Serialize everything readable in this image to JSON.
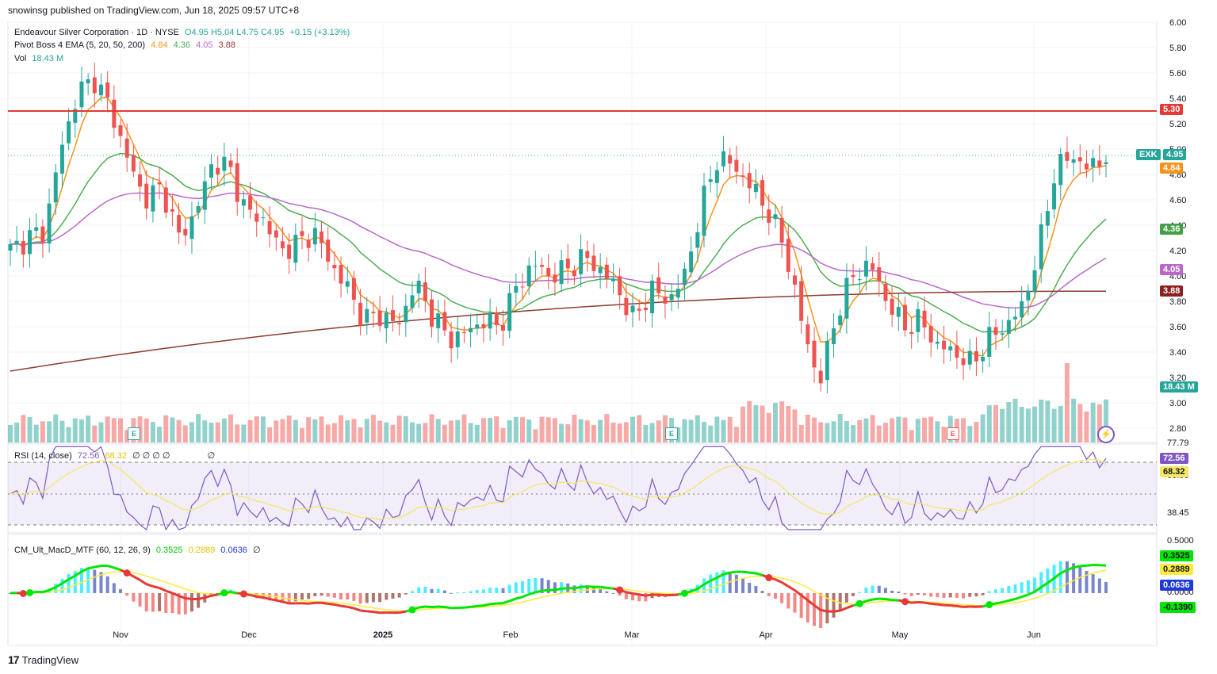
{
  "header": {
    "publisher_line": "snowinsg published on TradingView.com, Jun 18, 2025 09:57 UTC+8"
  },
  "legend": {
    "symbol_line": {
      "name": "Endeavour Silver Corporation · 1D · NYSE",
      "o": "O4.95",
      "h": "H5.04",
      "l": "L4.75",
      "c": "C4.95",
      "chg": "+0.15 (+3.13%)"
    },
    "ema_line": {
      "name": "Pivot Boss 4 EMA (5, 20, 50, 200)",
      "v1": "4.84",
      "v2": "4.36",
      "v3": "4.05",
      "v4": "3.88"
    },
    "vol_line": {
      "name": "Vol",
      "value": "18.43 M"
    },
    "rsi_line": {
      "name": "RSI (14, close)",
      "v1": "72.56",
      "v2": "68.32",
      "rest": "∅ ∅ ∅ ∅",
      "last": "∅"
    },
    "macd_line": {
      "name": "CM_Ult_MacD_MTF (60, 12, 26, 9)",
      "v1": "0.3525",
      "v2": "0.2889",
      "v3": "0.0636",
      "v4": "∅"
    }
  },
  "price_axis": {
    "ticks": [
      "6.00",
      "5.80",
      "5.60",
      "5.40",
      "5.20",
      "5.00",
      "4.80",
      "4.60",
      "4.40",
      "4.20",
      "4.00",
      "3.80",
      "3.60",
      "3.40",
      "3.20",
      "3.00",
      "2.80"
    ]
  },
  "rsi_axis": {
    "ticks": [
      "77.79",
      "60.00",
      "38.45"
    ]
  },
  "macd_axis": {
    "ticks": [
      "0.5000",
      "0.0000"
    ]
  },
  "price_tags": {
    "resistance": "5.30",
    "symbol": "EXK",
    "last": "4.95",
    "ema5": "4.84",
    "ema20": "4.36",
    "ema50": "4.05",
    "ema200": "3.88",
    "vol": "18.43 M",
    "rsi": "72.56",
    "rsi_ma": "68.32",
    "macd1": "0.3525",
    "macd2": "0.2889",
    "macd3": "0.0636",
    "macd4": "-0.1390"
  },
  "date_axis": {
    "labels": [
      "Nov",
      "Dec",
      "2025",
      "Feb",
      "Mar",
      "Apr",
      "May",
      "Jun"
    ]
  },
  "events": [
    "E",
    "E",
    "E"
  ],
  "footer": {
    "brand": "TradingView"
  },
  "colors": {
    "up": "#26a69a",
    "down": "#ef5350",
    "ema5": "#f7931a",
    "ema20": "#4caf50",
    "ema50": "#ba68c8",
    "ema200": "#8d3b2f",
    "resistance": "#e53935",
    "rsi": "#7e57c2",
    "rsi_ma": "#f5e663",
    "macd": "#00e600",
    "signal": "#ffeb3b"
  },
  "chart_data": {
    "type": "candlestick",
    "symbol": "EXK",
    "timeframe": "1D",
    "x_labels": [
      "Nov",
      "Dec",
      "2025",
      "Feb",
      "Mar",
      "Apr",
      "May",
      "Jun"
    ],
    "ylim": [
      2.7,
      6.0
    ],
    "resistance": 5.3,
    "close_series_sample": [
      4.2,
      4.3,
      4.35,
      5.0,
      5.45,
      5.55,
      5.3,
      4.9,
      4.6,
      4.7,
      4.3,
      4.5,
      4.9,
      4.85,
      4.5,
      4.45,
      4.2,
      4.25,
      4.35,
      4.1,
      3.9,
      3.65,
      3.7,
      3.6,
      3.95,
      3.7,
      3.5,
      3.55,
      3.65,
      3.6,
      3.9,
      4.1,
      4.0,
      4.05,
      4.15,
      4.05,
      3.9,
      3.65,
      3.9,
      3.8,
      4.0,
      4.55,
      4.95,
      4.85,
      4.7,
      4.5,
      4.2,
      3.6,
      3.15,
      3.7,
      4.0,
      4.1,
      3.8,
      3.6,
      3.65,
      3.45,
      3.4,
      3.3,
      3.5,
      3.6,
      3.75,
      4.2,
      4.85,
      4.95,
      4.84,
      4.95
    ],
    "ema_last": {
      "ema5": 4.84,
      "ema20": 4.36,
      "ema50": 4.05,
      "ema200": 3.88
    },
    "volume_last": "18.43M",
    "rsi_last": 72.56,
    "rsi_ma_last": 68.32,
    "macd_last": [
      0.3525,
      0.2889,
      0.0636,
      -0.139
    ]
  }
}
